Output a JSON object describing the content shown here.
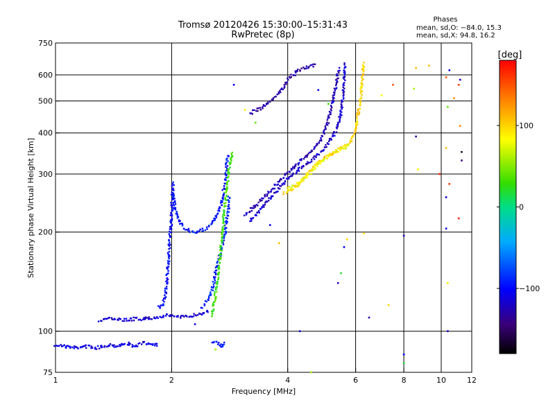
{
  "header": {
    "title": "Tromsø 20120426 15:30:00–15:31:43",
    "subtitle": "RwPretec (8p)"
  },
  "phases": {
    "heading": "Phases",
    "line1": "mean, sd,O: −84.0, 15.3",
    "line2": "mean, sd,X:  94.8, 16.2"
  },
  "colorbar": {
    "label": "[deg]",
    "range": [
      -180,
      180
    ],
    "ticks": [
      {
        "value": 100,
        "label": "100"
      },
      {
        "value": 0,
        "label": "0"
      },
      {
        "value": -100,
        "label": "−100"
      }
    ]
  },
  "chart_data": {
    "type": "scatter",
    "title": "Tromsø 20120426 15:30:00–15:31:43",
    "subtitle": "RwPretec (8p)",
    "xlabel": "Frequency [MHz]",
    "ylabel": "Stationary phase Virtual Height [km]",
    "xscale": "log",
    "yscale": "log",
    "xlim": [
      1,
      12
    ],
    "ylim": [
      75,
      750
    ],
    "grid": true,
    "xticks": [
      {
        "value": 1,
        "label": "1"
      },
      {
        "value": 2,
        "label": "2"
      },
      {
        "value": 4,
        "label": "4"
      },
      {
        "value": 6,
        "label": "6"
      },
      {
        "value": 8,
        "label": "8"
      },
      {
        "value": 10,
        "label": "10"
      },
      {
        "value": 12,
        "label": "12"
      }
    ],
    "yticks": [
      {
        "value": 75,
        "label": "75"
      },
      {
        "value": 100,
        "label": "100"
      },
      {
        "value": 200,
        "label": "200"
      },
      {
        "value": 300,
        "label": "300"
      },
      {
        "value": 400,
        "label": "400"
      },
      {
        "value": 500,
        "label": "500"
      },
      {
        "value": 600,
        "label": "600"
      },
      {
        "value": 750,
        "label": "750"
      }
    ],
    "xgrid": [
      1,
      2,
      4,
      6,
      8,
      10
    ],
    "ygrid": [
      100,
      200,
      300,
      400,
      500,
      600,
      750
    ],
    "color_by": "phase (deg)",
    "traces": [
      {
        "phase": -110,
        "points": [
          [
            1.0,
            91
          ],
          [
            1.05,
            90
          ],
          [
            1.12,
            89
          ],
          [
            1.2,
            90
          ],
          [
            1.28,
            89
          ],
          [
            1.38,
            91
          ],
          [
            1.46,
            90
          ],
          [
            1.52,
            92
          ],
          [
            1.6,
            90
          ],
          [
            1.7,
            92
          ],
          [
            1.85,
            91
          ]
        ]
      },
      {
        "phase": -115,
        "points": [
          [
            1.3,
            108
          ],
          [
            1.4,
            109
          ],
          [
            1.5,
            108
          ],
          [
            1.6,
            109
          ],
          [
            1.7,
            109
          ],
          [
            1.8,
            110
          ],
          [
            1.9,
            111
          ],
          [
            2.0,
            112
          ],
          [
            2.1,
            110
          ],
          [
            2.2,
            111
          ],
          [
            2.3,
            112
          ],
          [
            2.5,
            115
          ]
        ]
      },
      {
        "phase": -100,
        "points": [
          [
            1.85,
            118
          ],
          [
            1.9,
            120
          ],
          [
            1.93,
            130
          ],
          [
            1.96,
            160
          ],
          [
            1.98,
            190
          ],
          [
            2.0,
            225
          ],
          [
            2.01,
            255
          ],
          [
            2.02,
            285
          ]
        ]
      },
      {
        "phase": -95,
        "points": [
          [
            2.02,
            260
          ],
          [
            2.04,
            235
          ],
          [
            2.08,
            220
          ],
          [
            2.12,
            210
          ],
          [
            2.2,
            203
          ],
          [
            2.3,
            200
          ],
          [
            2.4,
            202
          ],
          [
            2.5,
            208
          ],
          [
            2.6,
            220
          ],
          [
            2.68,
            240
          ],
          [
            2.72,
            260
          ],
          [
            2.75,
            285
          ],
          [
            2.78,
            320
          ],
          [
            2.8,
            345
          ]
        ]
      },
      {
        "phase": -90,
        "points": [
          [
            2.4,
            118
          ],
          [
            2.45,
            122
          ],
          [
            2.5,
            125
          ],
          [
            2.55,
            135
          ],
          [
            2.6,
            150
          ],
          [
            2.65,
            165
          ],
          [
            2.7,
            180
          ],
          [
            2.75,
            200
          ],
          [
            2.8,
            230
          ],
          [
            2.82,
            260
          ]
        ]
      },
      {
        "phase": -95,
        "points": [
          [
            2.55,
            92
          ],
          [
            2.6,
            93
          ],
          [
            2.65,
            91
          ],
          [
            2.7,
            90
          ],
          [
            2.75,
            92
          ]
        ]
      },
      {
        "phase": -118,
        "points": [
          [
            3.2,
            215
          ],
          [
            3.35,
            230
          ],
          [
            3.5,
            245
          ],
          [
            3.7,
            262
          ],
          [
            3.9,
            280
          ],
          [
            4.0,
            292
          ],
          [
            4.2,
            305
          ],
          [
            4.4,
            318
          ],
          [
            4.6,
            330
          ],
          [
            4.8,
            345
          ],
          [
            5.0,
            360
          ],
          [
            5.2,
            385
          ],
          [
            5.4,
            420
          ],
          [
            5.5,
            460
          ],
          [
            5.55,
            510
          ],
          [
            5.6,
            560
          ],
          [
            5.62,
            610
          ],
          [
            5.65,
            650
          ]
        ]
      },
      {
        "phase": -125,
        "points": [
          [
            3.1,
            225
          ],
          [
            3.3,
            240
          ],
          [
            3.5,
            258
          ],
          [
            3.7,
            275
          ],
          [
            3.9,
            295
          ],
          [
            4.1,
            312
          ],
          [
            4.3,
            328
          ],
          [
            4.5,
            342
          ],
          [
            4.7,
            360
          ],
          [
            4.9,
            385
          ],
          [
            5.05,
            420
          ],
          [
            5.15,
            460
          ],
          [
            5.25,
            510
          ],
          [
            5.35,
            570
          ],
          [
            5.45,
            630
          ]
        ]
      },
      {
        "phase": -130,
        "points": [
          [
            3.2,
            460
          ],
          [
            3.35,
            470
          ],
          [
            3.5,
            485
          ],
          [
            3.6,
            500
          ],
          [
            3.75,
            520
          ],
          [
            3.9,
            545
          ],
          [
            4.0,
            580
          ],
          [
            4.2,
            610
          ],
          [
            4.4,
            630
          ],
          [
            4.6,
            640
          ],
          [
            4.75,
            645
          ]
        ]
      },
      {
        "phase": 100,
        "points": [
          [
            3.9,
            262
          ],
          [
            4.1,
            268
          ],
          [
            4.3,
            282
          ],
          [
            4.5,
            300
          ],
          [
            4.7,
            318
          ],
          [
            4.9,
            330
          ],
          [
            5.1,
            340
          ],
          [
            5.3,
            350
          ],
          [
            5.5,
            360
          ],
          [
            5.7,
            368
          ],
          [
            5.85,
            380
          ],
          [
            6.0,
            405
          ],
          [
            6.1,
            460
          ],
          [
            6.2,
            530
          ],
          [
            6.25,
            600
          ],
          [
            6.3,
            660
          ]
        ]
      },
      {
        "phase": 80,
        "points": [
          [
            4.0,
            270
          ],
          [
            4.2,
            278
          ],
          [
            4.4,
            290
          ],
          [
            4.6,
            305
          ],
          [
            4.8,
            322
          ],
          [
            5.0,
            335
          ],
          [
            5.2,
            345
          ],
          [
            5.4,
            352
          ],
          [
            5.6,
            360
          ],
          [
            5.8,
            372
          ]
        ]
      },
      {
        "phase": 30,
        "points": [
          [
            2.55,
            112
          ],
          [
            2.6,
            130
          ],
          [
            2.65,
            150
          ],
          [
            2.7,
            190
          ],
          [
            2.75,
            240
          ],
          [
            2.8,
            300
          ],
          [
            2.85,
            330
          ],
          [
            2.88,
            350
          ]
        ]
      }
    ],
    "scattered_points": [
      [
        2.3,
        105,
        -110
      ],
      [
        2.6,
        88,
        60
      ],
      [
        2.9,
        560,
        -100
      ],
      [
        3.1,
        470,
        90
      ],
      [
        3.3,
        430,
        40
      ],
      [
        3.6,
        210,
        -100
      ],
      [
        3.8,
        185,
        110
      ],
      [
        4.3,
        100,
        -110
      ],
      [
        4.6,
        75,
        60
      ],
      [
        4.8,
        540,
        -110
      ],
      [
        5.1,
        490,
        30
      ],
      [
        5.4,
        140,
        -120
      ],
      [
        5.5,
        150,
        20
      ],
      [
        5.6,
        180,
        -100
      ],
      [
        5.7,
        190,
        100
      ],
      [
        6.3,
        198,
        90
      ],
      [
        6.5,
        110,
        -130
      ],
      [
        7.0,
        520,
        80
      ],
      [
        7.3,
        120,
        100
      ],
      [
        7.5,
        560,
        150
      ],
      [
        8.0,
        195,
        -120
      ],
      [
        8.0,
        85,
        -100
      ],
      [
        8.0,
        80,
        20
      ],
      [
        8.5,
        545,
        60
      ],
      [
        8.6,
        390,
        -130
      ],
      [
        8.7,
        310,
        80
      ],
      [
        8.6,
        630,
        110
      ],
      [
        9.3,
        640,
        110
      ],
      [
        9.9,
        300,
        170
      ],
      [
        10.3,
        590,
        150
      ],
      [
        10.3,
        360,
        110
      ],
      [
        10.3,
        255,
        -110
      ],
      [
        10.3,
        205,
        -110
      ],
      [
        10.4,
        140,
        90
      ],
      [
        10.4,
        100,
        -120
      ],
      [
        10.5,
        280,
        160
      ],
      [
        10.8,
        510,
        130
      ],
      [
        11.1,
        220,
        170
      ],
      [
        11.2,
        580,
        -120
      ],
      [
        11.3,
        350,
        -170
      ],
      [
        11.2,
        420,
        130
      ],
      [
        11.3,
        330,
        -140
      ],
      [
        11.1,
        560,
        160
      ],
      [
        10.4,
        480,
        40
      ],
      [
        10.5,
        620,
        -110
      ]
    ]
  }
}
